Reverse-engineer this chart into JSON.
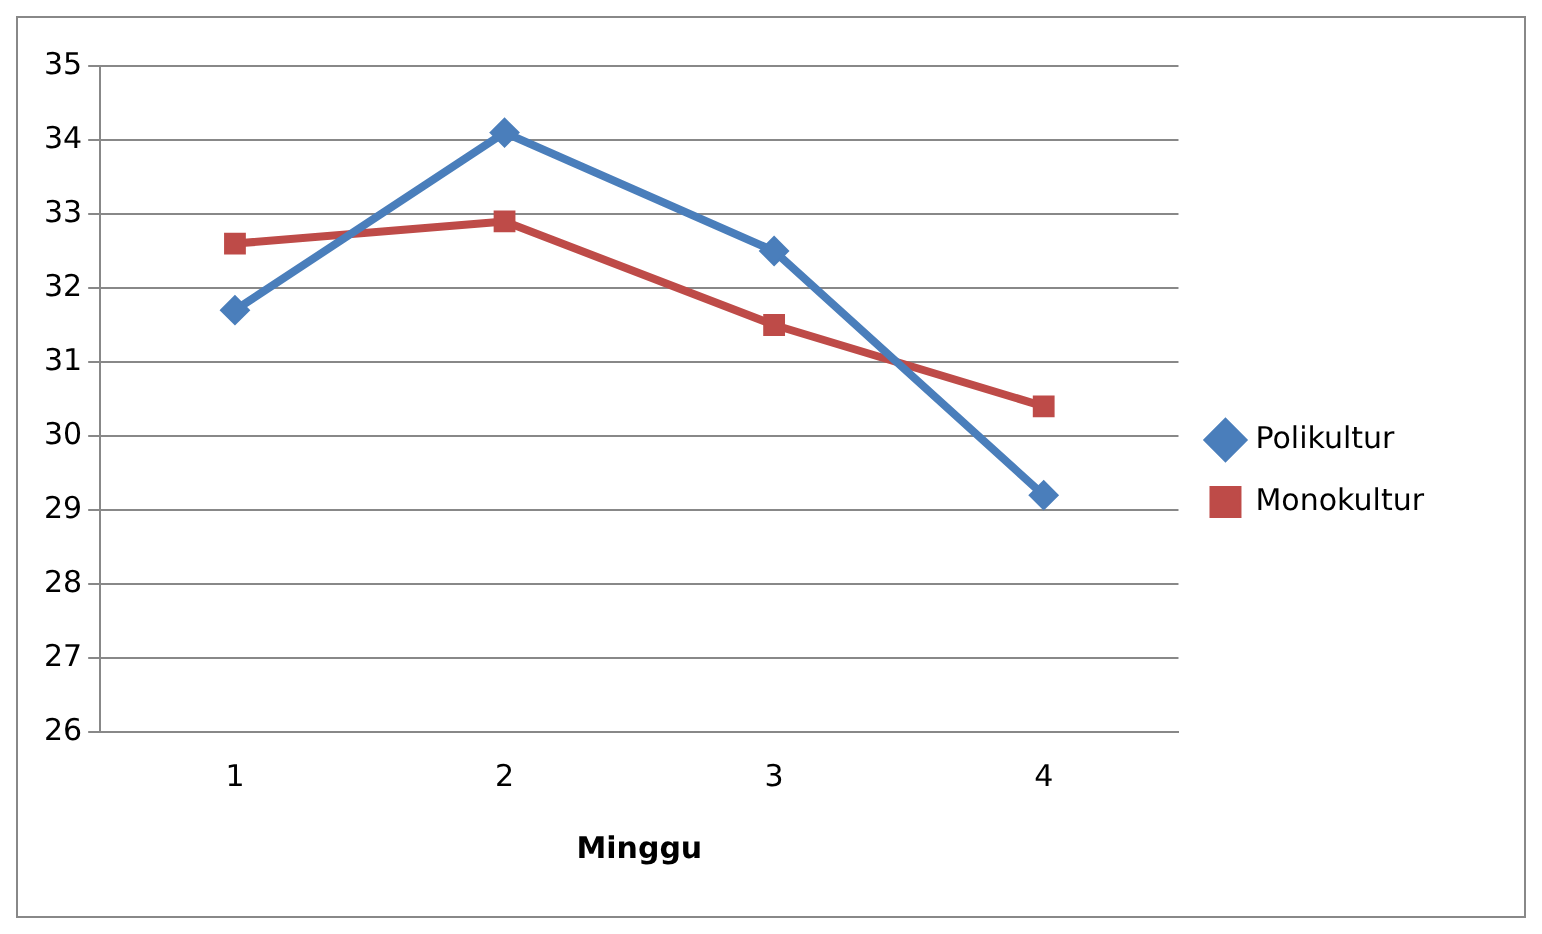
{
  "chart_data": {
    "type": "line",
    "xlabel": "Minggu",
    "categories": [
      "1",
      "2",
      "3",
      "4"
    ],
    "series": [
      {
        "name": "Polikultur",
        "color": "#4a7ebb",
        "values": [
          31.7,
          34.1,
          32.5,
          29.2
        ],
        "marker": "diamond"
      },
      {
        "name": "Monokultur",
        "color": "#be4b48",
        "values": [
          32.6,
          32.9,
          31.5,
          30.4
        ],
        "marker": "square"
      }
    ],
    "ylim": [
      26,
      35
    ],
    "yticks": [
      26,
      27,
      28,
      29,
      30,
      31,
      32,
      33,
      34,
      35
    ],
    "grid": "y",
    "legend": "right"
  }
}
